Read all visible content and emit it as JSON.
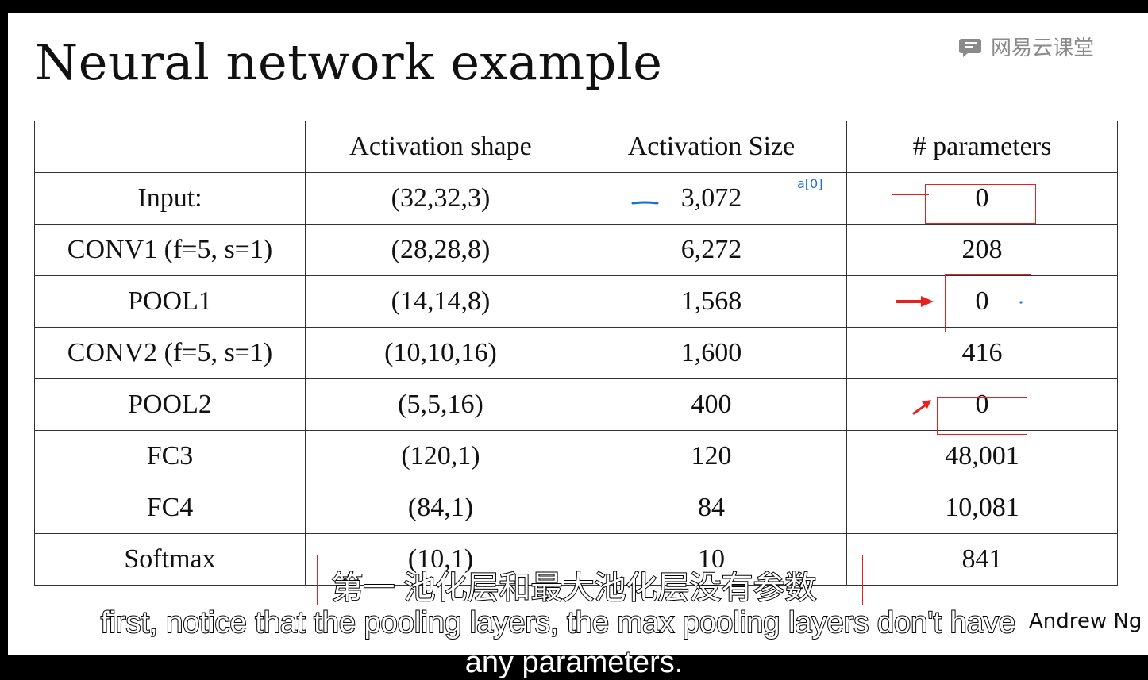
{
  "slide": {
    "title": "Neural network example",
    "watermark": "网易云课堂",
    "author": "Andrew Ng"
  },
  "table": {
    "headers": [
      "",
      "Activation shape",
      "Activation Size",
      "# parameters"
    ],
    "rows": [
      [
        "Input:",
        "(32,32,3)",
        "3,072",
        "0"
      ],
      [
        "CONV1 (f=5, s=1)",
        "(28,28,8)",
        "6,272",
        "208"
      ],
      [
        "POOL1",
        "(14,14,8)",
        "1,568",
        "0"
      ],
      [
        "CONV2  (f=5, s=1)",
        "(10,10,16)",
        "1,600",
        "416"
      ],
      [
        "POOL2",
        "(5,5,16)",
        "400",
        "0"
      ],
      [
        "FC3",
        "(120,1)",
        "120",
        "48,001"
      ],
      [
        "FC4",
        "(84,1)",
        "84",
        "10,081"
      ],
      [
        "Softmax",
        "(10,1)",
        "10",
        "841"
      ]
    ]
  },
  "annotations": {
    "handwritten_label": "a[0]",
    "ink_color": "#1a6fd6",
    "highlight_color": "#e8201e"
  },
  "subtitles": {
    "chinese": "第一 池化层和最大池化层没有参数",
    "english_line1": "first, notice that the pooling layers, the max pooling layers don't have",
    "english_line2": "any parameters."
  }
}
